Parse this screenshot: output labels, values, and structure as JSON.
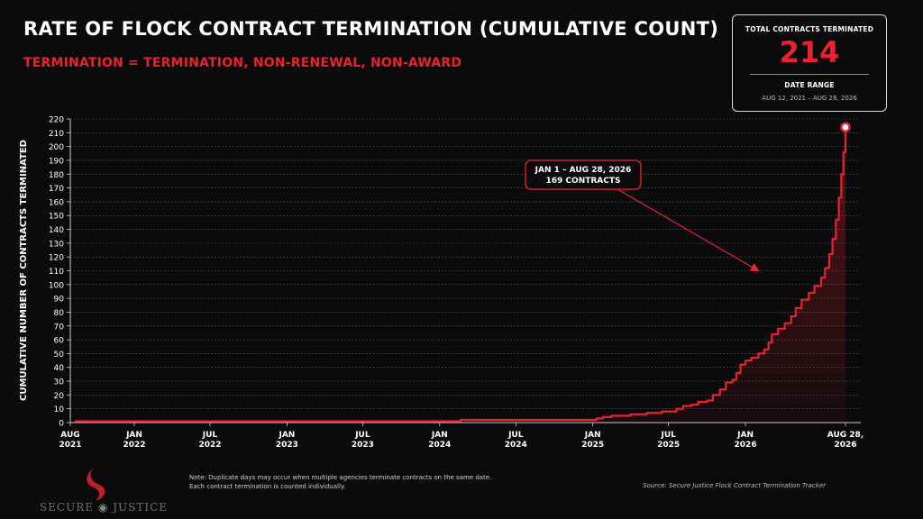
{
  "header": {
    "title": "RATE OF FLOCK CONTRACT TERMINATION (CUMULATIVE COUNT)",
    "subtitle": "TERMINATION = TERMINATION, NON-RENEWAL, NON-AWARD"
  },
  "stats": {
    "total_label": "TOTAL CONTRACTS TERMINATED",
    "total_value": "214",
    "range_label": "DATE RANGE",
    "range_value": "AUG 12, 2021 – AUG 28, 2026"
  },
  "footer": {
    "note_line1": "Note: Duplicate days may occur when multiple agencies terminate contracts on the same date.",
    "note_line2": "Each contract termination is counted individually.",
    "source": "Source: Secure Justice Flock Contract Termination Tracker",
    "logo_text_left": "SECURE",
    "logo_text_right": "JUSTICE"
  },
  "colors": {
    "accent": "#e8232f",
    "background": "#0b0b0d",
    "grid": "#555555"
  },
  "chart_data": {
    "type": "line",
    "title": "RATE OF FLOCK CONTRACT TERMINATION (CUMULATIVE COUNT)",
    "ylabel": "CUMULATIVE NUMBER OF CONTRACTS TERMINATED",
    "xlabel": "",
    "ylim": [
      0,
      220
    ],
    "yticks": [
      0,
      10,
      20,
      30,
      40,
      50,
      60,
      70,
      80,
      90,
      100,
      110,
      120,
      130,
      140,
      150,
      160,
      170,
      180,
      190,
      200,
      210,
      220
    ],
    "xlim": [
      "2021-08-12",
      "2026-08-28"
    ],
    "xticks": [
      {
        "date": "2021-08-01",
        "line1": "AUG",
        "line2": "2021"
      },
      {
        "date": "2022-01-01",
        "line1": "JAN",
        "line2": "2022"
      },
      {
        "date": "2022-07-01",
        "line1": "JUL",
        "line2": "2022"
      },
      {
        "date": "2023-01-01",
        "line1": "JAN",
        "line2": "2023"
      },
      {
        "date": "2023-07-01",
        "line1": "JUL",
        "line2": "2023"
      },
      {
        "date": "2024-01-01",
        "line1": "JAN",
        "line2": "2024"
      },
      {
        "date": "2024-07-01",
        "line1": "JUL",
        "line2": "2024"
      },
      {
        "date": "2025-01-01",
        "line1": "JAN",
        "line2": "2025"
      },
      {
        "date": "2025-07-01",
        "line1": "JUL",
        "line2": "2025"
      },
      {
        "date": "2026-01-01",
        "line1": "JAN",
        "line2": "2026"
      },
      {
        "date": "2026-08-28",
        "line1": "AUG 28,",
        "line2": "2026"
      }
    ],
    "grid": true,
    "legend": "none",
    "series": [
      {
        "points": [
          [
            "2021-08-12",
            1
          ],
          [
            "2024-02-15",
            1
          ],
          [
            "2024-02-20",
            2
          ],
          [
            "2024-12-20",
            2
          ],
          [
            "2025-01-10",
            3
          ],
          [
            "2025-01-25",
            4
          ],
          [
            "2025-02-15",
            5
          ],
          [
            "2025-04-01",
            6
          ],
          [
            "2025-05-10",
            7
          ],
          [
            "2025-06-15",
            8
          ],
          [
            "2025-07-20",
            10
          ],
          [
            "2025-08-05",
            12
          ],
          [
            "2025-08-25",
            13
          ],
          [
            "2025-09-10",
            15
          ],
          [
            "2025-10-01",
            16
          ],
          [
            "2025-10-15",
            20
          ],
          [
            "2025-11-01",
            24
          ],
          [
            "2025-11-15",
            29
          ],
          [
            "2025-12-01",
            31
          ],
          [
            "2025-12-10",
            36
          ],
          [
            "2025-12-20",
            42
          ],
          [
            "2026-01-01",
            45
          ],
          [
            "2026-01-15",
            47
          ],
          [
            "2026-02-01",
            50
          ],
          [
            "2026-02-15",
            53
          ],
          [
            "2026-02-25",
            58
          ],
          [
            "2026-03-05",
            64
          ],
          [
            "2026-03-20",
            68
          ],
          [
            "2026-04-05",
            72
          ],
          [
            "2026-04-20",
            77
          ],
          [
            "2026-05-01",
            83
          ],
          [
            "2026-05-15",
            89
          ],
          [
            "2026-06-01",
            94
          ],
          [
            "2026-06-15",
            99
          ],
          [
            "2026-07-01",
            105
          ],
          [
            "2026-07-10",
            112
          ],
          [
            "2026-07-20",
            122
          ],
          [
            "2026-07-28",
            133
          ],
          [
            "2026-08-05",
            147
          ],
          [
            "2026-08-12",
            163
          ],
          [
            "2026-08-18",
            180
          ],
          [
            "2026-08-23",
            196
          ],
          [
            "2026-08-28",
            214
          ]
        ]
      }
    ],
    "annotation": {
      "line1": "JAN 1 – AUG 28, 2026",
      "line2": "169 CONTRACTS",
      "arrow_to": [
        "2026-02-01",
        110
      ]
    }
  }
}
